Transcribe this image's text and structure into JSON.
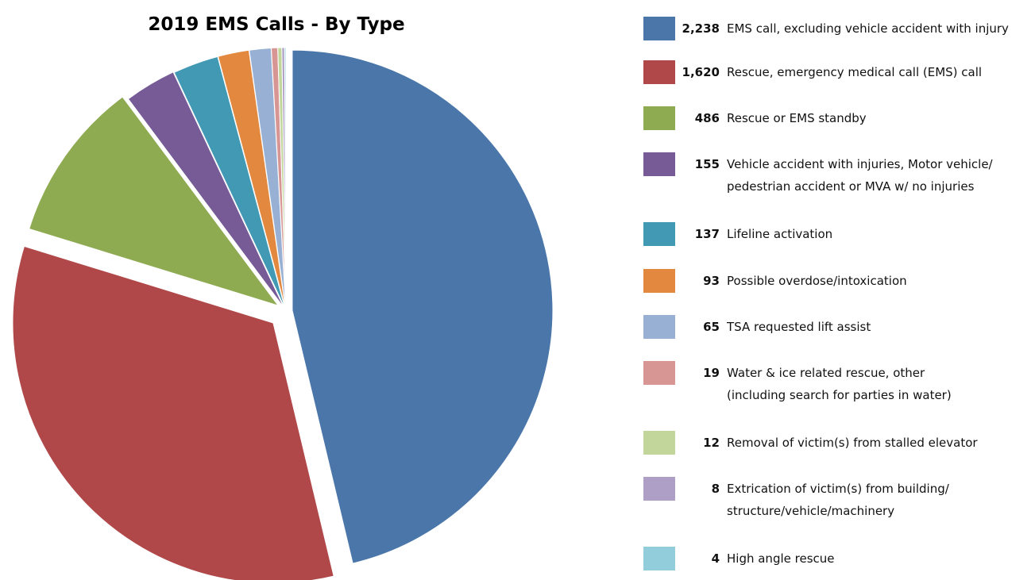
{
  "chart_data": {
    "type": "pie",
    "title": "2019 EMS Calls - By Type",
    "categories": [
      "EMS call, excluding vehicle accident with injury",
      "Rescue, emergency medical call (EMS) call",
      "Rescue or EMS standby",
      "Vehicle accident with injuries, Motor vehicle/\npedestrian accident or MVA w/ no injuries",
      "Lifeline activation",
      "Possible overdose/intoxication",
      "TSA requested lift assist",
      "Water & ice related rescue, other\n(including search for parties in water)",
      "Removal of victim(s) from stalled elevator",
      "Extrication of victim(s) from building/\nstructure/vehicle/machinery",
      "High angle rescue"
    ],
    "values": [
      2238,
      1620,
      486,
      155,
      137,
      93,
      65,
      19,
      12,
      8,
      4
    ],
    "value_labels": [
      "2,238",
      "1,620",
      "486",
      "155",
      "137",
      "93",
      "65",
      "19",
      "12",
      "8",
      "4"
    ],
    "colors": [
      "#4a76aa",
      "#b0484a",
      "#8fab52",
      "#765b97",
      "#4299b3",
      "#e2883f",
      "#98b0d4",
      "#d79594",
      "#c2d69b",
      "#ae9fc6",
      "#92cddc"
    ],
    "legend": "right"
  }
}
